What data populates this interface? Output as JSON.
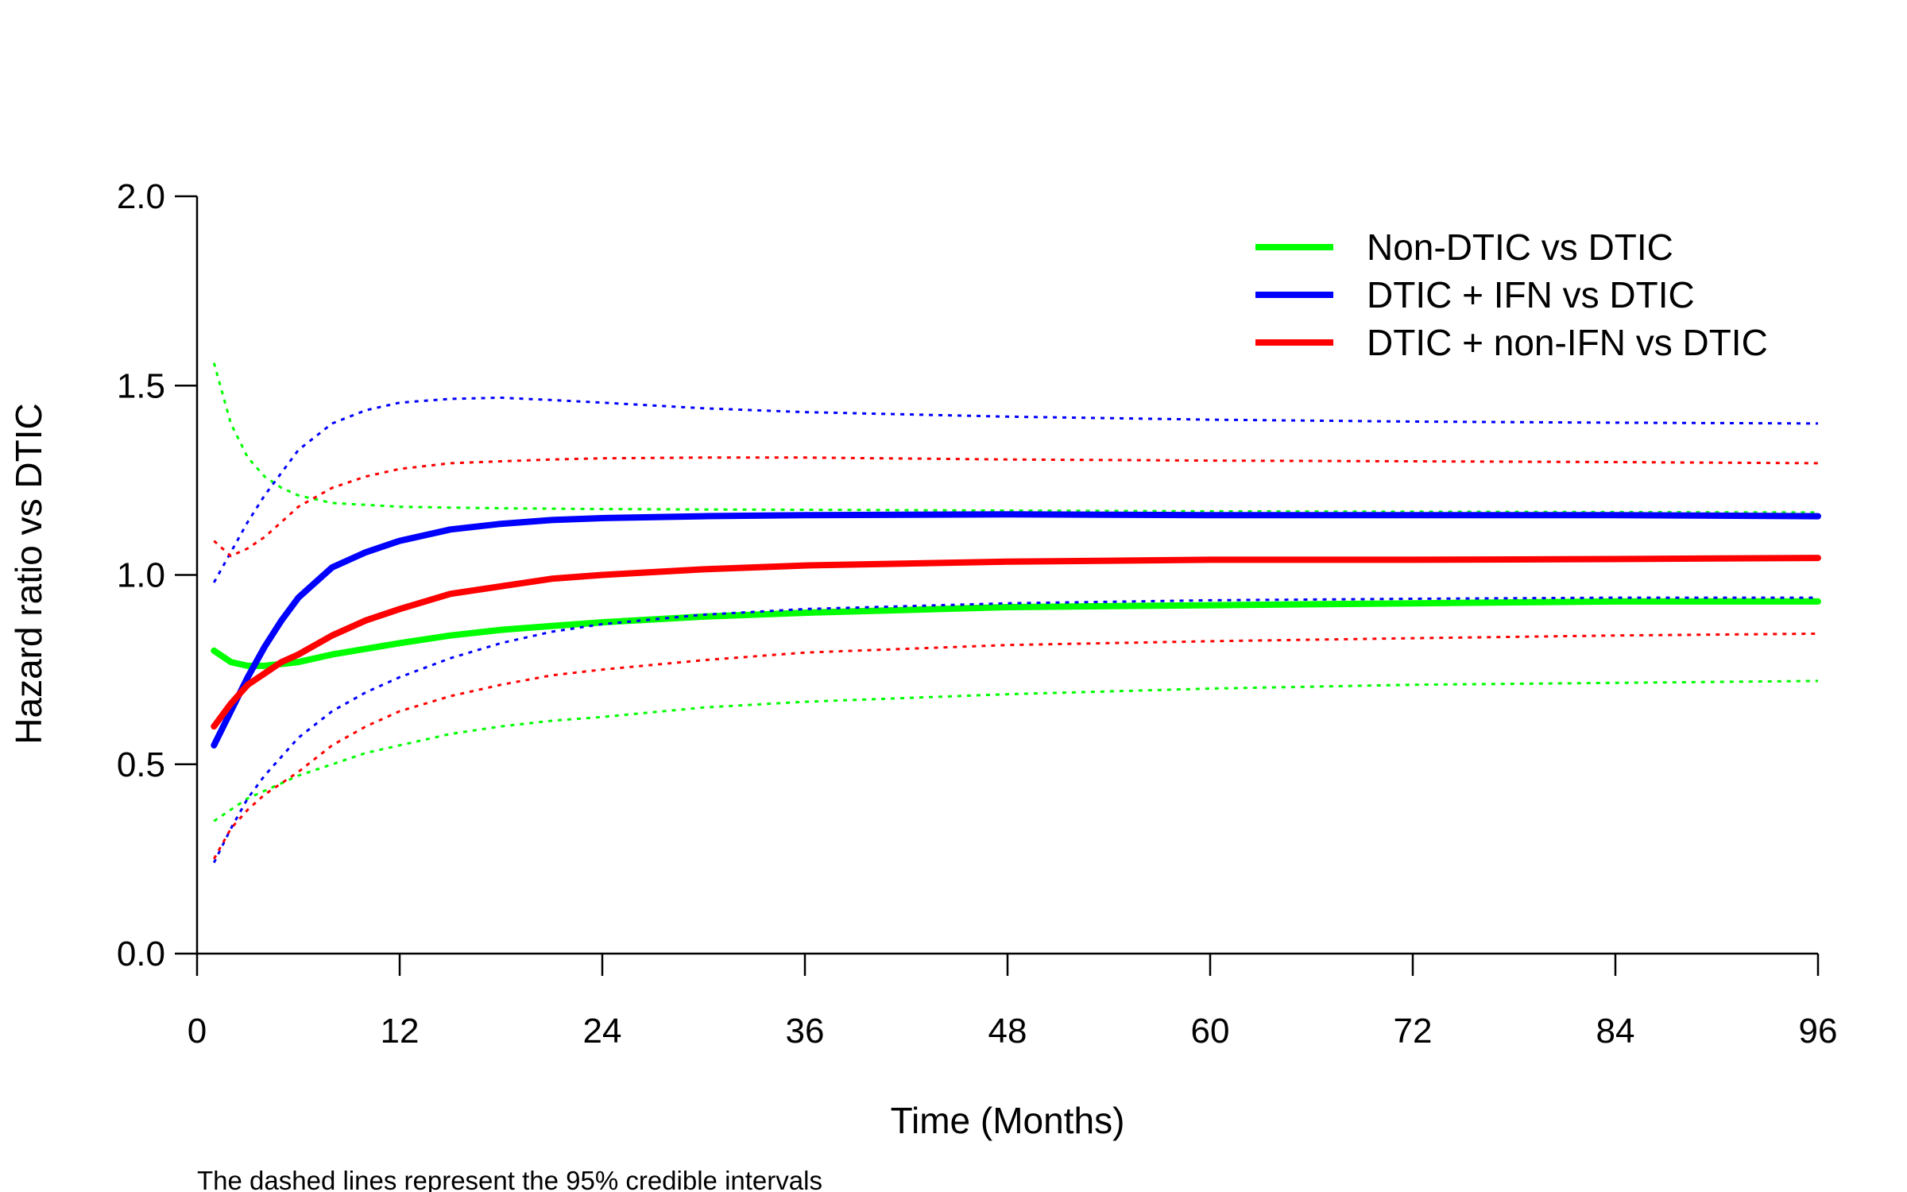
{
  "chart_data": {
    "type": "line",
    "title": "",
    "xlabel": "Time (Months)",
    "ylabel": "Hazard ratio vs DTIC",
    "caption": "The dashed lines represent the 95% credible intervals",
    "xlim": [
      0,
      96
    ],
    "ylim": [
      0,
      2
    ],
    "xticks": [
      0,
      12,
      24,
      36,
      48,
      60,
      72,
      84,
      96
    ],
    "yticks": [
      0.0,
      0.5,
      1.0,
      1.5,
      2.0
    ],
    "ytick_labels": [
      "0.0",
      "0.5",
      "1.0",
      "1.5",
      "2.0"
    ],
    "grid": false,
    "legend_position": "top-right",
    "x": [
      1,
      2,
      3,
      4,
      5,
      6,
      8,
      10,
      12,
      15,
      18,
      21,
      24,
      30,
      36,
      48,
      60,
      72,
      84,
      96
    ],
    "series": [
      {
        "name": "Non-DTIC vs DTIC",
        "color": "#00ff00",
        "estimate": [
          0.8,
          0.77,
          0.76,
          0.76,
          0.765,
          0.77,
          0.79,
          0.805,
          0.82,
          0.84,
          0.855,
          0.865,
          0.875,
          0.89,
          0.9,
          0.915,
          0.92,
          0.925,
          0.93,
          0.93
        ],
        "lower": [
          0.35,
          0.38,
          0.41,
          0.43,
          0.45,
          0.47,
          0.5,
          0.53,
          0.55,
          0.58,
          0.6,
          0.615,
          0.625,
          0.65,
          0.665,
          0.685,
          0.7,
          0.71,
          0.715,
          0.72
        ],
        "upper": [
          1.56,
          1.4,
          1.31,
          1.26,
          1.23,
          1.21,
          1.19,
          1.185,
          1.18,
          1.178,
          1.176,
          1.175,
          1.174,
          1.173,
          1.172,
          1.17,
          1.168,
          1.167,
          1.166,
          1.165
        ]
      },
      {
        "name": "DTIC + IFN vs DTIC",
        "color": "#0000ff",
        "estimate": [
          0.55,
          0.64,
          0.73,
          0.81,
          0.88,
          0.94,
          1.02,
          1.06,
          1.09,
          1.12,
          1.135,
          1.145,
          1.15,
          1.155,
          1.158,
          1.16,
          1.158,
          1.158,
          1.158,
          1.155
        ],
        "lower": [
          0.24,
          0.33,
          0.41,
          0.47,
          0.52,
          0.57,
          0.64,
          0.69,
          0.73,
          0.78,
          0.82,
          0.85,
          0.87,
          0.895,
          0.91,
          0.925,
          0.933,
          0.937,
          0.94,
          0.94
        ],
        "upper": [
          0.98,
          1.06,
          1.14,
          1.21,
          1.27,
          1.33,
          1.4,
          1.435,
          1.455,
          1.465,
          1.468,
          1.462,
          1.455,
          1.44,
          1.43,
          1.418,
          1.41,
          1.405,
          1.402,
          1.4
        ]
      },
      {
        "name": "DTIC + non-IFN vs DTIC",
        "color": "#ff0000",
        "estimate": [
          0.6,
          0.66,
          0.71,
          0.74,
          0.77,
          0.79,
          0.84,
          0.88,
          0.91,
          0.95,
          0.97,
          0.99,
          1.0,
          1.015,
          1.025,
          1.035,
          1.04,
          1.04,
          1.042,
          1.045
        ],
        "lower": [
          0.25,
          0.33,
          0.38,
          0.42,
          0.45,
          0.48,
          0.55,
          0.6,
          0.64,
          0.68,
          0.71,
          0.735,
          0.75,
          0.775,
          0.795,
          0.815,
          0.825,
          0.833,
          0.84,
          0.845
        ],
        "upper": [
          1.09,
          1.05,
          1.07,
          1.1,
          1.14,
          1.18,
          1.23,
          1.26,
          1.28,
          1.295,
          1.3,
          1.305,
          1.308,
          1.31,
          1.31,
          1.305,
          1.302,
          1.3,
          1.298,
          1.295
        ]
      }
    ]
  }
}
